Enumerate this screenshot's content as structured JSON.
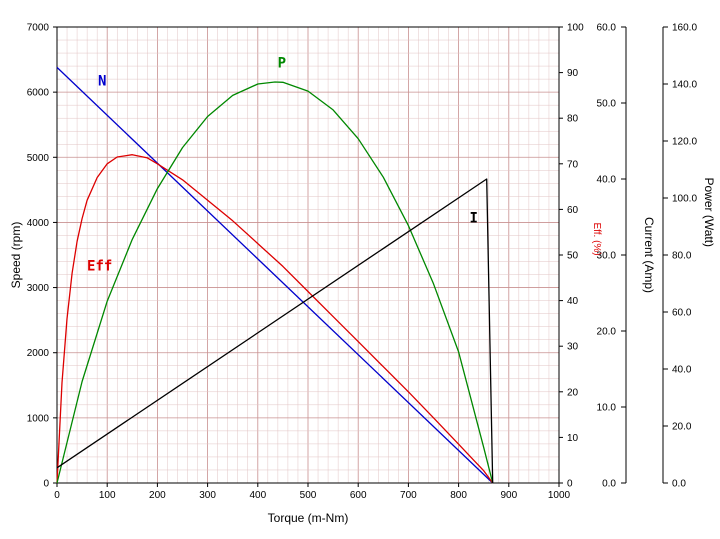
{
  "chart_data": {
    "type": "line",
    "xlabel": "Torque (m-Nm)",
    "ylabel": "Speed (rpm)",
    "y2label": "Eff. (%)",
    "y3label": "Current (Amp)",
    "y4label": "Power (Watt)",
    "xlim": [
      0,
      1000
    ],
    "ylim": [
      0,
      7000
    ],
    "y2lim": [
      0,
      100
    ],
    "y3lim": [
      0,
      60
    ],
    "y4lim": [
      0,
      160
    ],
    "grid": true,
    "x_ticks": [
      "0",
      "100",
      "200",
      "300",
      "400",
      "500",
      "600",
      "700",
      "800",
      "900",
      "1000"
    ],
    "y_ticks": [
      "0",
      "1000",
      "2000",
      "3000",
      "4000",
      "5000",
      "6000",
      "7000"
    ],
    "y2_ticks": [
      "0",
      "10",
      "20",
      "30",
      "40",
      "50",
      "60",
      "70",
      "80",
      "90",
      "100"
    ],
    "y3_ticks": [
      "0.0",
      "10.0",
      "20.0",
      "30.0",
      "40.0",
      "50.0",
      "60.0"
    ],
    "y4_ticks": [
      "0.0",
      "20.0",
      "40.0",
      "60.0",
      "80.0",
      "100.0",
      "120.0",
      "140.0",
      "160.0"
    ],
    "series": [
      {
        "name": "N",
        "axis": "speed",
        "color": "#0000cc",
        "x": [
          0,
          868
        ],
        "y": [
          6380,
          0
        ],
        "label_at": [
          90,
          6100
        ]
      },
      {
        "name": "Eff",
        "axis": "eff",
        "color": "#dd0000",
        "x": [
          0,
          10,
          20,
          30,
          40,
          50,
          60,
          80,
          100,
          120,
          150,
          180,
          200,
          250,
          300,
          350,
          400,
          450,
          500,
          550,
          600,
          650,
          700,
          750,
          800,
          830,
          850,
          868
        ],
        "y": [
          0,
          22,
          36,
          46,
          53,
          58,
          62,
          67,
          70,
          71.5,
          72,
          71.3,
          70,
          66.5,
          62,
          57.5,
          52.5,
          47.5,
          42,
          36.5,
          31,
          25.5,
          20,
          14.3,
          8.5,
          5,
          2.7,
          0
        ],
        "label_at": [
          85,
          3260
        ]
      },
      {
        "name": "P",
        "axis": "power",
        "color": "#008800",
        "x": [
          0,
          50,
          100,
          150,
          200,
          250,
          300,
          350,
          400,
          434,
          450,
          500,
          550,
          600,
          650,
          700,
          750,
          800,
          850,
          868
        ],
        "y": [
          0,
          35.6,
          63.8,
          85.5,
          103.3,
          117.7,
          128.6,
          136,
          140,
          140.7,
          140.6,
          137.5,
          130.9,
          120.8,
          107.3,
          90.3,
          69.9,
          46,
          12.5,
          0
        ],
        "label_at": [
          448,
          6380
        ]
      },
      {
        "name": "I",
        "axis": "current",
        "color": "#000000",
        "x": [
          0,
          856,
          868
        ],
        "y": [
          2,
          40,
          0
        ],
        "label_at": [
          830,
          4000
        ]
      }
    ]
  }
}
